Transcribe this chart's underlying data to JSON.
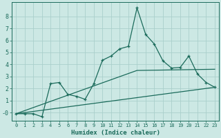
{
  "xlabel": "Humidex (Indice chaleur)",
  "background_color": "#cce8e4",
  "grid_color": "#aacfcb",
  "line_color": "#1a6a5a",
  "xlim": [
    -0.5,
    23.5
  ],
  "ylim": [
    -0.7,
    9.2
  ],
  "yticks": [
    0,
    1,
    2,
    3,
    4,
    5,
    6,
    7,
    8
  ],
  "ytick_labels": [
    "-0",
    "1",
    "2",
    "3",
    "4",
    "5",
    "6",
    "7",
    "8"
  ],
  "xticks": [
    0,
    1,
    2,
    3,
    4,
    5,
    6,
    7,
    8,
    9,
    10,
    11,
    12,
    13,
    14,
    15,
    16,
    17,
    18,
    19,
    20,
    21,
    22,
    23
  ],
  "series1_x": [
    0,
    1,
    2,
    3,
    4,
    5,
    6,
    7,
    8,
    9,
    10,
    11,
    12,
    13,
    14,
    15,
    16,
    17,
    18,
    19,
    20,
    21,
    22,
    23
  ],
  "series1_y": [
    -0.1,
    -0.1,
    -0.1,
    -0.35,
    2.4,
    2.5,
    1.5,
    1.35,
    1.1,
    2.4,
    4.35,
    4.7,
    5.3,
    5.5,
    8.7,
    6.5,
    5.7,
    4.3,
    3.7,
    3.75,
    4.7,
    3.2,
    2.5,
    2.1
  ],
  "series2_x": [
    0,
    14,
    23
  ],
  "series2_y": [
    -0.1,
    3.5,
    3.6
  ],
  "series3_x": [
    0,
    23
  ],
  "series3_y": [
    -0.1,
    2.1
  ]
}
